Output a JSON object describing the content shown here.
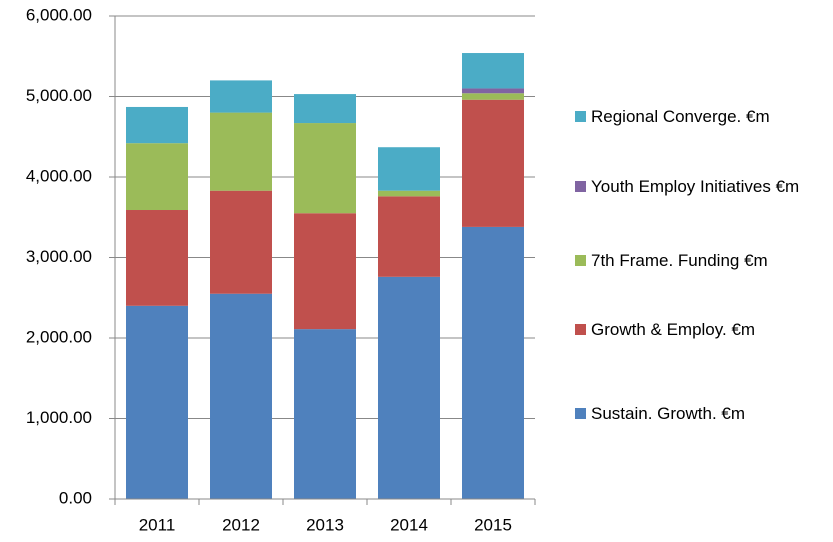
{
  "chart_data": {
    "type": "stacked_bar",
    "categories": [
      "2011",
      "2012",
      "2013",
      "2014",
      "2015"
    ],
    "series": [
      {
        "name": "Sustain. Growth. €m",
        "color": "#4f81bd",
        "values": [
          2400,
          2550,
          2110,
          2760,
          3380
        ]
      },
      {
        "name": "Growth & Employ. €m",
        "color": "#c0504d",
        "values": [
          1190,
          1280,
          1440,
          1000,
          1580
        ]
      },
      {
        "name": "7th Frame. Funding €m",
        "color": "#9bbb59",
        "values": [
          830,
          970,
          1120,
          70,
          80
        ]
      },
      {
        "name": "Youth Employ Initiatives €m",
        "color": "#8064a2",
        "values": [
          0,
          0,
          0,
          0,
          60
        ]
      },
      {
        "name": "Regional Converge. €m",
        "color": "#4bacc6",
        "values": [
          450,
          400,
          360,
          540,
          440
        ]
      }
    ],
    "ylim": [
      0,
      6000
    ],
    "yticks": [
      {
        "value": 0,
        "label": "0.00"
      },
      {
        "value": 1000,
        "label": "1,000.00"
      },
      {
        "value": 2000,
        "label": "2,000.00"
      },
      {
        "value": 3000,
        "label": "3,000.00"
      },
      {
        "value": 4000,
        "label": "4,000.00"
      },
      {
        "value": 5000,
        "label": "5,000.00"
      },
      {
        "value": 6000,
        "label": "6,000.00"
      }
    ],
    "grid": true
  }
}
